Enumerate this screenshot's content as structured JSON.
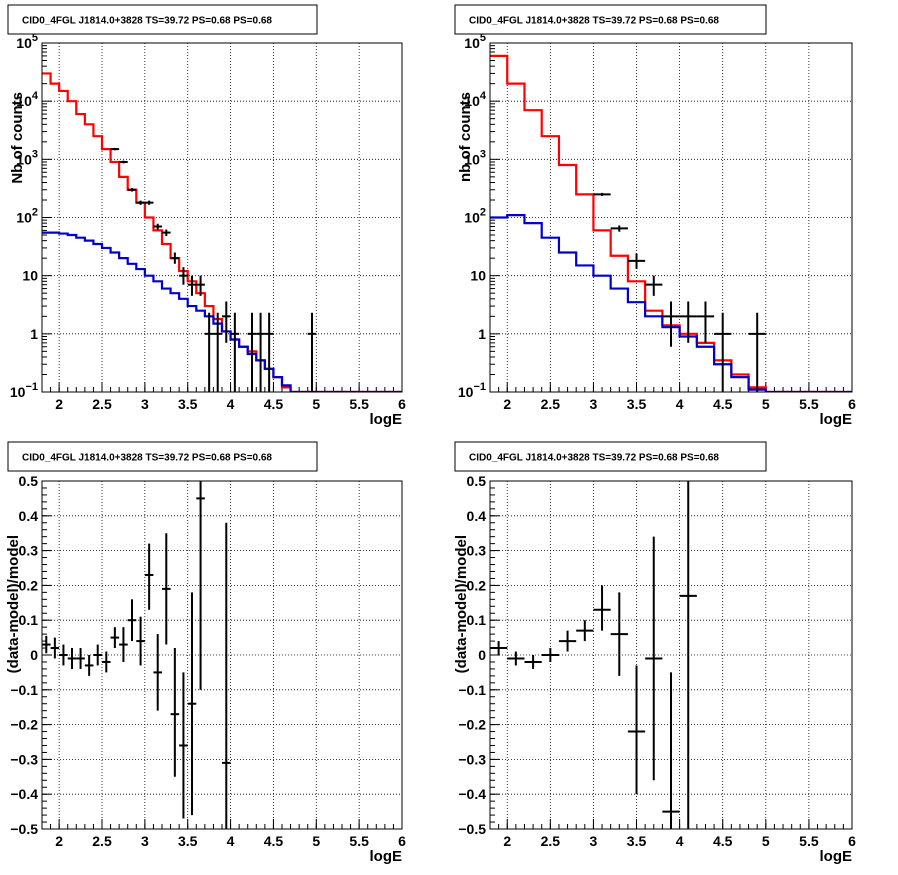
{
  "chart_data": [
    {
      "type": "step",
      "title": "CID0_4FGL J1814.0+3828 TS=39.72 PS=0.68 PS=0.68",
      "xlabel": "logE",
      "ylabel": "Nb of counts",
      "xlim": [
        1.8,
        6.0
      ],
      "ylim": [
        0.1,
        100000
      ],
      "yscale": "log",
      "grid": true,
      "x_ticks": [
        "2",
        "2.5",
        "3",
        "3.5",
        "4",
        "4.5",
        "5",
        "5.5",
        "6"
      ],
      "y_ticks": [
        "10⁻¹",
        "1",
        "10",
        "10²",
        "10³",
        "10⁴",
        "10⁵"
      ],
      "bin_edges": [
        1.8,
        1.9,
        2.0,
        2.1,
        2.2,
        2.3,
        2.4,
        2.5,
        2.6,
        2.7,
        2.8,
        2.9,
        3.0,
        3.1,
        3.2,
        3.3,
        3.4,
        3.5,
        3.6,
        3.7,
        3.8,
        3.9,
        4.0,
        4.1,
        4.2,
        4.3,
        4.4,
        4.5,
        4.6,
        4.7,
        4.8,
        4.9,
        5.0,
        5.1,
        5.2,
        5.3,
        5.4,
        5.5,
        5.6,
        5.7,
        5.8,
        5.9,
        6.0
      ],
      "series": [
        {
          "color": "#ff0000",
          "values": [
            30000,
            20000,
            15000,
            10000,
            6000,
            4000,
            2500,
            1500,
            900,
            500,
            300,
            180,
            100,
            60,
            35,
            20,
            12,
            8,
            5,
            3,
            1.8,
            1.1,
            0.8,
            0.6,
            0.5,
            0.35,
            0.25,
            0.18,
            0.12,
            0.1,
            0.1,
            0.1,
            0.1,
            0.1,
            0.1,
            0.1,
            0.1,
            0.1,
            0.1,
            0.1,
            0.1,
            0.1
          ]
        },
        {
          "color": "#0000cc",
          "values": [
            55,
            55,
            53,
            50,
            45,
            40,
            35,
            30,
            25,
            20,
            16,
            13,
            10,
            8,
            6,
            5,
            4,
            3,
            2.5,
            2,
            1.5,
            1.1,
            0.8,
            0.6,
            0.45,
            0.35,
            0.25,
            0.18,
            0.13,
            0.1,
            0.1,
            0.1,
            0.1,
            0.1,
            0.1,
            0.1,
            0.1,
            0.1,
            0.1,
            0.1,
            0.1,
            0.1
          ]
        }
      ],
      "points": [
        {
          "x": 2.65,
          "y": 1500,
          "lo": 1430,
          "hi": 1570
        },
        {
          "x": 2.75,
          "y": 900,
          "lo": 850,
          "hi": 950
        },
        {
          "x": 2.85,
          "y": 300,
          "lo": 280,
          "hi": 320
        },
        {
          "x": 2.95,
          "y": 180,
          "lo": 165,
          "hi": 195
        },
        {
          "x": 3.05,
          "y": 180,
          "lo": 165,
          "hi": 195
        },
        {
          "x": 3.15,
          "y": 70,
          "lo": 62,
          "hi": 78
        },
        {
          "x": 3.25,
          "y": 55,
          "lo": 48,
          "hi": 62
        },
        {
          "x": 3.35,
          "y": 20,
          "lo": 16,
          "hi": 25
        },
        {
          "x": 3.45,
          "y": 10,
          "lo": 7,
          "hi": 14
        },
        {
          "x": 3.55,
          "y": 7,
          "lo": 4.5,
          "hi": 10
        },
        {
          "x": 3.65,
          "y": 7,
          "lo": 4.5,
          "hi": 10
        },
        {
          "x": 3.75,
          "y": 1,
          "lo": 0.1,
          "hi": 2.3
        },
        {
          "x": 3.85,
          "y": 1,
          "lo": 0.1,
          "hi": 2.3
        },
        {
          "x": 3.95,
          "y": 2,
          "lo": 0.7,
          "hi": 3.6
        },
        {
          "x": 4.05,
          "y": 1,
          "lo": 0.1,
          "hi": 2.3
        },
        {
          "x": 4.25,
          "y": 1,
          "lo": 0.1,
          "hi": 2.3
        },
        {
          "x": 4.35,
          "y": 1,
          "lo": 0.1,
          "hi": 2.3
        },
        {
          "x": 4.45,
          "y": 1,
          "lo": 0.1,
          "hi": 2.3
        },
        {
          "x": 4.95,
          "y": 1,
          "lo": 0.1,
          "hi": 2.3
        }
      ],
      "xerr": 0.05
    },
    {
      "type": "step",
      "title": "CID0_4FGL J1814.0+3828 TS=39.72 PS=0.68 PS=0.68",
      "xlabel": "logE",
      "ylabel": "nb of counts",
      "xlim": [
        1.8,
        6.0
      ],
      "ylim": [
        0.1,
        100000
      ],
      "yscale": "log",
      "grid": true,
      "x_ticks": [
        "2",
        "2.5",
        "3",
        "3.5",
        "4",
        "4.5",
        "5",
        "5.5",
        "6"
      ],
      "y_ticks": [
        "10⁻¹",
        "1",
        "10",
        "10²",
        "10³",
        "10⁴",
        "10⁵"
      ],
      "bin_edges": [
        1.8,
        2.0,
        2.2,
        2.4,
        2.6,
        2.8,
        3.0,
        3.2,
        3.4,
        3.6,
        3.8,
        4.0,
        4.2,
        4.4,
        4.6,
        4.8,
        5.0,
        5.2,
        5.4,
        5.6,
        5.8,
        6.0
      ],
      "series": [
        {
          "color": "#ff0000",
          "values": [
            60000,
            20000,
            7000,
            2500,
            800,
            250,
            60,
            22,
            8,
            2.5,
            1.4,
            1.0,
            0.7,
            0.35,
            0.2,
            0.12,
            0.1,
            0.1,
            0.1,
            0.1,
            0.1
          ]
        },
        {
          "color": "#0000cc",
          "values": [
            100,
            110,
            80,
            45,
            25,
            15,
            10,
            6,
            3.5,
            2.0,
            1.3,
            0.9,
            0.6,
            0.3,
            0.18,
            0.11,
            0.1,
            0.1,
            0.1,
            0.1,
            0.1
          ]
        }
      ],
      "points": [
        {
          "x": 3.1,
          "y": 250,
          "lo": 235,
          "hi": 265
        },
        {
          "x": 3.3,
          "y": 65,
          "lo": 57,
          "hi": 73
        },
        {
          "x": 3.5,
          "y": 18,
          "lo": 13,
          "hi": 24
        },
        {
          "x": 3.7,
          "y": 7,
          "lo": 4.5,
          "hi": 10
        },
        {
          "x": 3.9,
          "y": 2,
          "lo": 0.6,
          "hi": 3.6
        },
        {
          "x": 4.1,
          "y": 2,
          "lo": 0.7,
          "hi": 3.6
        },
        {
          "x": 4.3,
          "y": 2,
          "lo": 0.7,
          "hi": 3.6
        },
        {
          "x": 4.5,
          "y": 1,
          "lo": 0.1,
          "hi": 2.3
        },
        {
          "x": 4.9,
          "y": 1,
          "lo": 0.1,
          "hi": 2.3
        }
      ],
      "xerr": 0.1
    },
    {
      "type": "errorbar",
      "title": "CID0_4FGL J1814.0+3828 TS=39.72 PS=0.68 PS=0.68",
      "xlabel": "logE",
      "ylabel": "(data-model)/model",
      "xlim": [
        1.8,
        6.0
      ],
      "ylim": [
        -0.5,
        0.5
      ],
      "grid": true,
      "x_ticks": [
        "2",
        "2.5",
        "3",
        "3.5",
        "4",
        "4.5",
        "5",
        "5.5",
        "6"
      ],
      "y_ticks": [
        "−0.5",
        "−0.4",
        "−0.3",
        "−0.2",
        "−0.1",
        "0",
        "0.1",
        "0.2",
        "0.3",
        "0.4",
        "0.5"
      ],
      "xerr": 0.05,
      "points": [
        {
          "x": 1.85,
          "y": 0.03,
          "lo": 0.005,
          "hi": 0.055
        },
        {
          "x": 1.95,
          "y": 0.02,
          "lo": -0.01,
          "hi": 0.05
        },
        {
          "x": 2.05,
          "y": 0.0,
          "lo": -0.03,
          "hi": 0.03
        },
        {
          "x": 2.15,
          "y": -0.01,
          "lo": -0.04,
          "hi": 0.02
        },
        {
          "x": 2.25,
          "y": -0.01,
          "lo": -0.04,
          "hi": 0.02
        },
        {
          "x": 2.35,
          "y": -0.03,
          "lo": -0.06,
          "hi": 0.0
        },
        {
          "x": 2.45,
          "y": 0.0,
          "lo": -0.03,
          "hi": 0.03
        },
        {
          "x": 2.55,
          "y": -0.02,
          "lo": -0.05,
          "hi": 0.01
        },
        {
          "x": 2.65,
          "y": 0.05,
          "lo": 0.02,
          "hi": 0.08
        },
        {
          "x": 2.75,
          "y": 0.03,
          "lo": -0.02,
          "hi": 0.08
        },
        {
          "x": 2.85,
          "y": 0.1,
          "lo": 0.04,
          "hi": 0.16
        },
        {
          "x": 2.95,
          "y": 0.04,
          "lo": -0.03,
          "hi": 0.11
        },
        {
          "x": 3.05,
          "y": 0.23,
          "lo": 0.13,
          "hi": 0.32
        },
        {
          "x": 3.15,
          "y": -0.05,
          "lo": -0.16,
          "hi": 0.06
        },
        {
          "x": 3.25,
          "y": 0.19,
          "lo": 0.03,
          "hi": 0.35
        },
        {
          "x": 3.35,
          "y": -0.17,
          "lo": -0.35,
          "hi": 0.02
        },
        {
          "x": 3.45,
          "y": -0.26,
          "lo": -0.47,
          "hi": -0.05
        },
        {
          "x": 3.55,
          "y": -0.14,
          "lo": -0.46,
          "hi": 0.18
        },
        {
          "x": 3.65,
          "y": 0.45,
          "lo": -0.1,
          "hi": 0.5
        },
        {
          "x": 3.95,
          "y": -0.31,
          "lo": -0.5,
          "hi": 0.38
        }
      ]
    },
    {
      "type": "errorbar",
      "title": "CID0_4FGL J1814.0+3828 TS=39.72 PS=0.68 PS=0.68",
      "xlabel": "logE",
      "ylabel": "(data-model)/model",
      "xlim": [
        1.8,
        6.0
      ],
      "ylim": [
        -0.5,
        0.5
      ],
      "grid": true,
      "x_ticks": [
        "2",
        "2.5",
        "3",
        "3.5",
        "4",
        "4.5",
        "5",
        "5.5",
        "6"
      ],
      "y_ticks": [
        "−0.5",
        "−0.4",
        "−0.3",
        "−0.2",
        "−0.1",
        "0",
        "0.1",
        "0.2",
        "0.3",
        "0.4",
        "0.5"
      ],
      "xerr": 0.1,
      "points": [
        {
          "x": 1.9,
          "y": 0.02,
          "lo": 0.0,
          "hi": 0.04
        },
        {
          "x": 2.1,
          "y": -0.01,
          "lo": -0.03,
          "hi": 0.01
        },
        {
          "x": 2.3,
          "y": -0.02,
          "lo": -0.04,
          "hi": 0.0
        },
        {
          "x": 2.5,
          "y": 0.0,
          "lo": -0.02,
          "hi": 0.02
        },
        {
          "x": 2.7,
          "y": 0.04,
          "lo": 0.01,
          "hi": 0.07
        },
        {
          "x": 2.9,
          "y": 0.07,
          "lo": 0.04,
          "hi": 0.1
        },
        {
          "x": 3.1,
          "y": 0.13,
          "lo": 0.07,
          "hi": 0.2
        },
        {
          "x": 3.3,
          "y": 0.06,
          "lo": -0.06,
          "hi": 0.18
        },
        {
          "x": 3.5,
          "y": -0.22,
          "lo": -0.4,
          "hi": -0.03
        },
        {
          "x": 3.7,
          "y": -0.01,
          "lo": -0.36,
          "hi": 0.34
        },
        {
          "x": 3.9,
          "y": -0.45,
          "lo": -0.5,
          "hi": -0.05
        },
        {
          "x": 4.1,
          "y": 0.17,
          "lo": -0.5,
          "hi": 0.5
        }
      ]
    }
  ]
}
